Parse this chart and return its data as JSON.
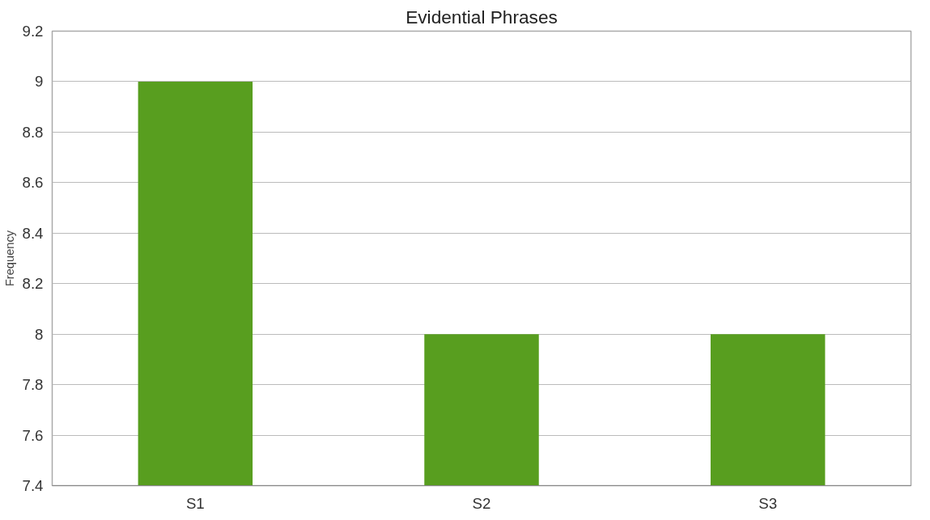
{
  "chart_data": {
    "type": "bar",
    "title": "Evidential Phrases",
    "ylabel": "Frequency",
    "categories": [
      "S1",
      "S2",
      "S3"
    ],
    "values": [
      9,
      8,
      8
    ],
    "color": "#589e1f",
    "ylim": [
      7.4,
      9.2
    ],
    "yticks": [
      7.4,
      7.6,
      7.8,
      8,
      8.2,
      8.4,
      8.6,
      8.8,
      9,
      9.2
    ],
    "grid": "y"
  }
}
